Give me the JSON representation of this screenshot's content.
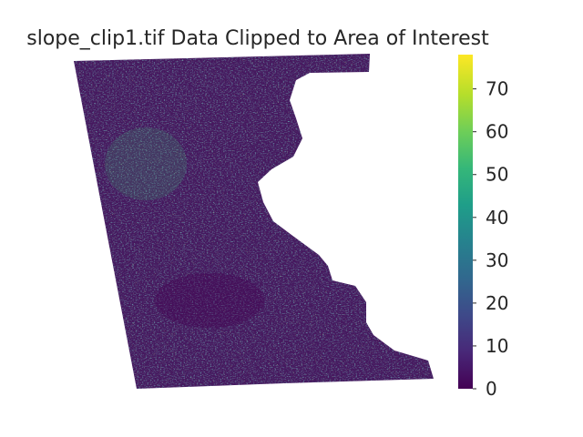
{
  "title": "slope_clip1.tif Data Clipped to Area of Interest",
  "colormap": {
    "name": "viridis",
    "stops": [
      "#440154",
      "#482878",
      "#3e4989",
      "#31688e",
      "#26828e",
      "#1f9e89",
      "#35b779",
      "#6ece58",
      "#b5de2b",
      "#fde725"
    ]
  },
  "colorbar": {
    "min": 0,
    "max": 78,
    "ticks": [
      0,
      10,
      20,
      30,
      40,
      50,
      60,
      70
    ],
    "tick_labels": [
      "0",
      "10",
      "20",
      "30",
      "40",
      "50",
      "60",
      "70"
    ]
  },
  "raster": {
    "description_units": "slope",
    "value_range": [
      0,
      78
    ],
    "background": "#ffffff"
  }
}
